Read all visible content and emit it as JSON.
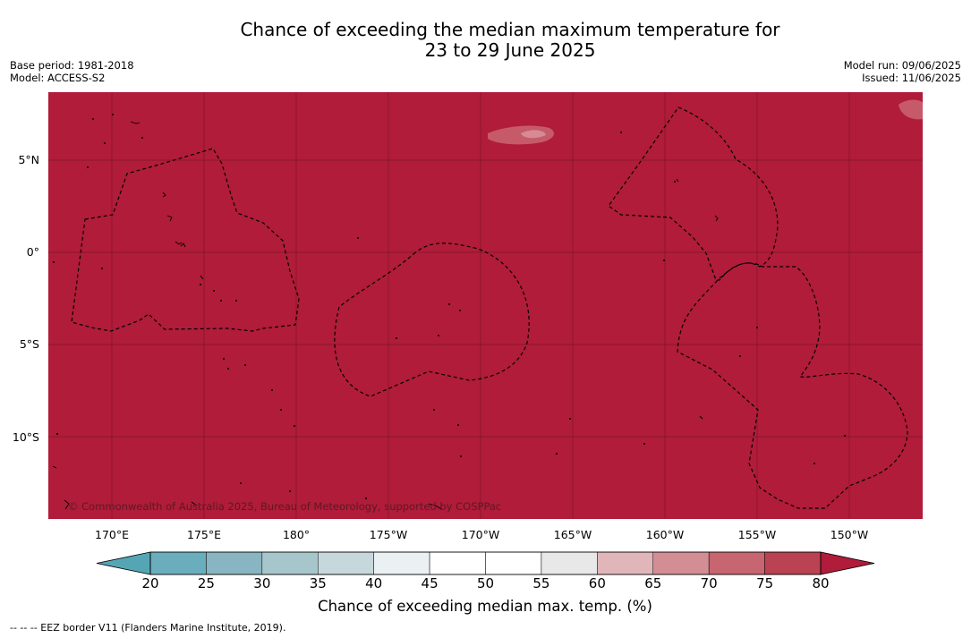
{
  "title_line1": "Chance of exceeding the median maximum temperature for",
  "title_line2": "23 to 29 June 2025",
  "base_period": "Base period: 1981-2018",
  "model": "Model: ACCESS-S2",
  "model_run": "Model run: 09/06/2025",
  "issued": "Issued: 11/06/2025",
  "copyright": "© Commonwealth of Australia 2025, Bureau of Meteorology, supported by COSPPac",
  "lat_labels": [
    "5°N",
    "0°",
    "5°S",
    "10°S"
  ],
  "lon_labels": [
    "170°E",
    "175°E",
    "180°",
    "175°W",
    "170°W",
    "165°W",
    "160°W",
    "155°W",
    "150°W"
  ],
  "colorbar": {
    "title": "Chance of exceeding median max. temp. (%)",
    "ticks": [
      "20",
      "25",
      "30",
      "35",
      "40",
      "45",
      "50",
      "55",
      "60",
      "65",
      "70",
      "75",
      "80"
    ],
    "colors": [
      "#6aaebd",
      "#88b5c1",
      "#a6c6cc",
      "#c6d8dc",
      "#ebf0f3",
      "#ffffff",
      "#ffffff",
      "#e8e8e8",
      "#e0b6bb",
      "#d38e95",
      "#c76570",
      "#ba4253"
    ],
    "under_color": "#55a6b5",
    "over_color": "#b01c3a"
  },
  "map_fill_color": "#b01c3a",
  "footnote": "--  --  -- EEZ border V11 (Flanders Marine Institute, 2019)."
}
